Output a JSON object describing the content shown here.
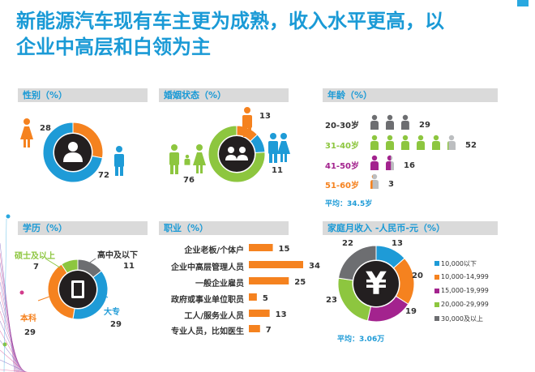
{
  "title_line1": "新能源汽车现有车主更为成熟，收入水平更高，以",
  "title_line2": "企业中高层和白领为主",
  "colors": {
    "blue": "#1e9bd7",
    "orange": "#f5821f",
    "green": "#8dc63f",
    "purple": "#a3238e",
    "gray": "#6d6e71",
    "lightgray": "#bcbec0",
    "dark": "#231f20"
  },
  "chart_data": [
    {
      "type": "pie",
      "title": "性别（%）",
      "slices": [
        {
          "label": "female-icon",
          "value": 28,
          "color": "#f5821f"
        },
        {
          "label": "male-icon",
          "value": 72,
          "color": "#1e9bd7"
        }
      ]
    },
    {
      "type": "pie",
      "title": "婚姻状态（%）",
      "slices": [
        {
          "label": "single-icon",
          "value": 13,
          "color": "#f5821f"
        },
        {
          "label": "couple-icon",
          "value": 11,
          "color": "#1e9bd7"
        },
        {
          "label": "family-icon",
          "value": 76,
          "color": "#8dc63f"
        }
      ]
    },
    {
      "type": "bar",
      "title": "年龄（%）",
      "categories": [
        "20-30岁",
        "31-40岁",
        "41-50岁",
        "51-60岁"
      ],
      "values": [
        29,
        52,
        16,
        3
      ],
      "category_colors": [
        "#333333",
        "#8dc63f",
        "#a3238e",
        "#f5821f"
      ],
      "icon_colors": [
        "#6d6e71",
        "#8dc63f",
        "#a3238e",
        "#f5821f"
      ],
      "note": "平均：34.5岁"
    },
    {
      "type": "pie",
      "title": "学历（%）",
      "slices": [
        {
          "label": "高中及以下",
          "value": 11,
          "color": "#6d6e71"
        },
        {
          "label": "大专",
          "value": 29,
          "color": "#1e9bd7"
        },
        {
          "label": "本科",
          "value": 29,
          "color": "#f5821f"
        },
        {
          "label": "硕士及以上",
          "value": 7,
          "color": "#8dc63f"
        }
      ]
    },
    {
      "type": "bar",
      "title": "职业（%）",
      "categories": [
        "企业老板/个体户",
        "企业中高层管理人员",
        "一般企业雇员",
        "政府或事业单位职员",
        "工人/服务业人员",
        "专业人员，比如医生"
      ],
      "values": [
        15,
        34,
        25,
        5,
        13,
        7
      ],
      "xlim": [
        0,
        34
      ]
    },
    {
      "type": "pie",
      "title": "家庭月收入 -人民币-元（%）",
      "slices": [
        {
          "label": "10,000以下",
          "value": 13,
          "color": "#1e9bd7"
        },
        {
          "label": "10,000-14,999",
          "value": 20,
          "color": "#f5821f"
        },
        {
          "label": "15,000-19,999",
          "value": 19,
          "color": "#a3238e"
        },
        {
          "label": "20,000-29,999",
          "value": 23,
          "color": "#8dc63f"
        },
        {
          "label": "30,000及以上",
          "value": 22,
          "color": "#6d6e71"
        }
      ],
      "note": "平均：3.06万"
    }
  ]
}
